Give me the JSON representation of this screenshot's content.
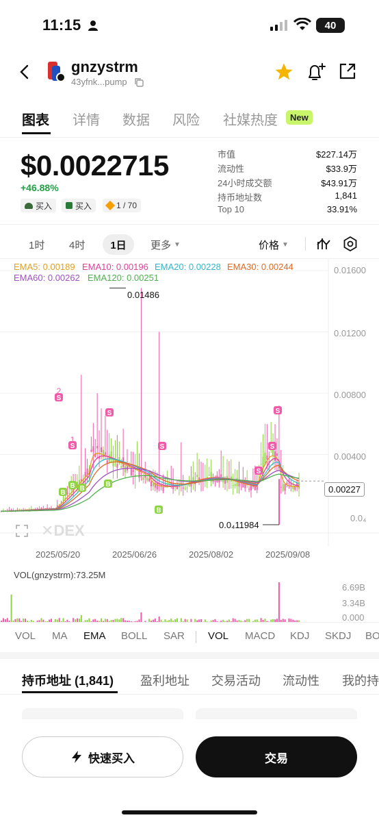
{
  "status_bar": {
    "time": "11:15",
    "battery": "40"
  },
  "token": {
    "name": "gnzystrm",
    "address": "43yfnk...pump"
  },
  "tabs": [
    {
      "label": "图表"
    },
    {
      "label": "详情"
    },
    {
      "label": "数据"
    },
    {
      "label": "风险"
    },
    {
      "label": "社媒热度"
    }
  ],
  "new_badge": "New",
  "price": {
    "value": "$0.0022715",
    "change": "+46.88%",
    "pills": [
      "买入",
      "买入",
      "1 / 70"
    ]
  },
  "stats": [
    {
      "label": "市值",
      "value": "$227.14万"
    },
    {
      "label": "流动性",
      "value": "$33.9万"
    },
    {
      "label": "24小时成交额",
      "value": "$43.91万"
    },
    {
      "label": "持币地址数",
      "value": "1,841"
    },
    {
      "label": "Top 10",
      "value": "33.91%"
    }
  ],
  "timeframes": [
    "1时",
    "4时",
    "1日",
    "更多"
  ],
  "price_mode": "价格",
  "ema_legend": [
    {
      "text": "EMA5: 0.00189",
      "color": "#e0a020"
    },
    {
      "text": "EMA10: 0.00196",
      "color": "#e0409a"
    },
    {
      "text": "EMA20: 0.00228",
      "color": "#30b8c8"
    },
    {
      "text": "EMA30: 0.00244",
      "color": "#e06a20"
    },
    {
      "text": "EMA60: 0.00262",
      "color": "#a050c0"
    },
    {
      "text": "EMA120: 0.00251",
      "color": "#50b050"
    }
  ],
  "chart": {
    "y_ticks": [
      "0.01600",
      "0.01200",
      "0.00800",
      "0.00400"
    ],
    "y_bottom": "0.0₄",
    "x_ticks": [
      "2025/05/20",
      "2025/06/26",
      "2025/08/02",
      "2025/09/08"
    ],
    "high_label": "0.01486",
    "low_label": "0.0₄11984",
    "current_label": "0.00227",
    "watermark": "DEX",
    "markers": [
      "2",
      "S",
      "1",
      "1",
      "S",
      "B",
      "B",
      "B",
      "1",
      "S",
      "1",
      "B",
      "1",
      "1",
      "1",
      "S",
      "2",
      "S",
      "3",
      "S"
    ]
  },
  "chart_data": {
    "type": "candlestick",
    "x": [
      "2025/05/20",
      "2025/06/26",
      "2025/08/02",
      "2025/09/08"
    ],
    "ylim": [
      0,
      0.016
    ],
    "y_ticks": [
      0.004,
      0.008,
      0.012,
      0.016
    ],
    "high": 0.01486,
    "current": 0.00227,
    "series": [
      {
        "name": "EMA5",
        "value": 0.00189
      },
      {
        "name": "EMA10",
        "value": 0.00196
      },
      {
        "name": "EMA20",
        "value": 0.00228
      },
      {
        "name": "EMA30",
        "value": 0.00244
      },
      {
        "name": "EMA60",
        "value": 0.00262
      },
      {
        "name": "EMA120",
        "value": 0.00251
      }
    ]
  },
  "volume": {
    "label": "VOL(gnzystrm):73.25M",
    "ticks": [
      "6.69B",
      "3.34B",
      "0.000"
    ]
  },
  "indicators": [
    "VOL",
    "MA",
    "EMA",
    "BOLL",
    "SAR",
    "VOL",
    "MACD",
    "KDJ",
    "SKDJ",
    "BO"
  ],
  "bottom_tabs": [
    "持币地址 (1,841)",
    "盈利地址",
    "交易活动",
    "流动性",
    "我的持"
  ],
  "actions": {
    "quick_buy": "快速买入",
    "trade": "交易"
  }
}
